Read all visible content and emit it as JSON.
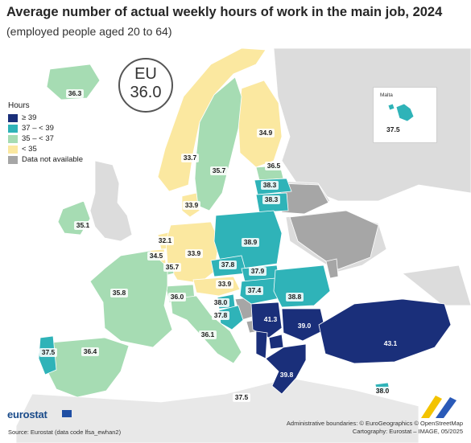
{
  "title": "Average number of actual weekly hours of work in the main job, 2024",
  "subtitle": "(employed people aged 20 to 64)",
  "eu_badge": {
    "label": "EU",
    "value": "36.0"
  },
  "legend": {
    "title": "Hours",
    "items": [
      {
        "label": "≥ 39",
        "color": "#1a2f7a"
      },
      {
        "label": "37 – < 39",
        "color": "#2fb3b8"
      },
      {
        "label": "35 – < 37",
        "color": "#a6dcb3"
      },
      {
        "label": "< 35",
        "color": "#fbe8a0"
      },
      {
        "label": "Data not available",
        "color": "#a6a6a6"
      }
    ]
  },
  "colors": {
    "non_eu": "#dcdcdc",
    "sea": "#ffffff",
    "border": "#ffffff"
  },
  "inset": {
    "name": "Malta",
    "value": "37.5"
  },
  "countries": [
    {
      "name": "Iceland",
      "value": "36.3"
    },
    {
      "name": "Norway",
      "value": "33.7"
    },
    {
      "name": "Sweden",
      "value": "35.7"
    },
    {
      "name": "Finland",
      "value": "34.9"
    },
    {
      "name": "Estonia",
      "value": "36.5"
    },
    {
      "name": "Latvia",
      "value": "38.3"
    },
    {
      "name": "Lithuania",
      "value": "38.3"
    },
    {
      "name": "Denmark",
      "value": "33.9"
    },
    {
      "name": "Ireland",
      "value": "35.1"
    },
    {
      "name": "Netherlands",
      "value": "32.1"
    },
    {
      "name": "Belgium",
      "value": "34.5"
    },
    {
      "name": "Luxembourg",
      "value": "35.7"
    },
    {
      "name": "Germany",
      "value": "33.9"
    },
    {
      "name": "Poland",
      "value": "38.9"
    },
    {
      "name": "Czechia",
      "value": "37.8"
    },
    {
      "name": "Slovakia",
      "value": "37.9"
    },
    {
      "name": "Austria",
      "value": "33.9"
    },
    {
      "name": "Hungary",
      "value": "37.4"
    },
    {
      "name": "Romania",
      "value": "38.8"
    },
    {
      "name": "Slovenia",
      "value": "38.0"
    },
    {
      "name": "Croatia",
      "value": "37.8"
    },
    {
      "name": "Serbia",
      "value": "41.3"
    },
    {
      "name": "Bulgaria",
      "value": "39.0"
    },
    {
      "name": "Switzerland",
      "value": "36.0"
    },
    {
      "name": "France",
      "value": "35.8"
    },
    {
      "name": "Italy",
      "value": "36.1"
    },
    {
      "name": "Portugal",
      "value": "37.5"
    },
    {
      "name": "Spain",
      "value": "36.4"
    },
    {
      "name": "Greece",
      "value": "39.8"
    },
    {
      "name": "Türkiye",
      "value": "43.1"
    },
    {
      "name": "Cyprus",
      "value": "38.0"
    },
    {
      "name": "Sicily / Malta area",
      "value": "37.5"
    }
  ],
  "footer": {
    "logo": "eurostat",
    "source": "Source: Eurostat (data code lfsa_ewhan2)",
    "credits_1": "Administrative boundaries: © EuroGeographics © OpenStreetMap",
    "credits_2": "Cartography: Eurostat – IMAGE, 05/2025"
  }
}
